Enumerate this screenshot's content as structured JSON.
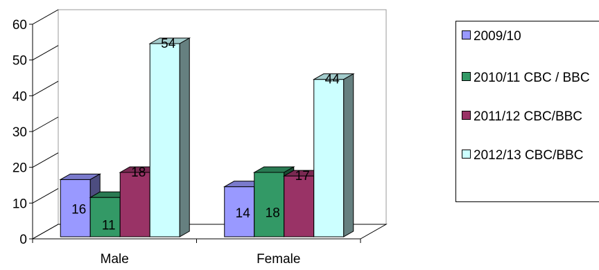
{
  "chart_data": {
    "type": "bar",
    "categories": [
      "Male",
      "Female"
    ],
    "series": [
      {
        "name": "2009/10",
        "values": [
          16,
          14
        ],
        "color": "#9999ff"
      },
      {
        "name": "2010/11 CBC / BBC",
        "values": [
          11,
          18
        ],
        "color": "#339966"
      },
      {
        "name": "2011/12 CBC/BBC",
        "values": [
          18,
          17
        ],
        "color": "#993366"
      },
      {
        "name": "2012/13 CBC/BBC",
        "values": [
          54,
          44
        ],
        "color": "#ccffff"
      }
    ],
    "title": "",
    "xlabel": "",
    "ylabel": "",
    "ylim": [
      0,
      60
    ],
    "yticks": [
      "0",
      "10",
      "20",
      "30",
      "40",
      "50",
      "60"
    ],
    "legend_position": "right",
    "grid": false,
    "style": "3d-clustered-column"
  }
}
